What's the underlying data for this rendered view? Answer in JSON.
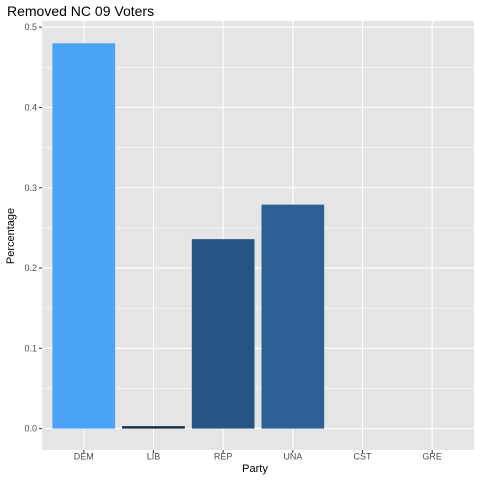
{
  "chart_data": {
    "type": "bar",
    "title": "Removed NC 09 Voters",
    "xlabel": "Party",
    "ylabel": "Percentage",
    "categories": [
      "DEM",
      "LIB",
      "REP",
      "UNA",
      "CST",
      "GRE"
    ],
    "values": [
      0.48,
      0.003,
      0.236,
      0.279,
      0.0,
      0.0
    ],
    "colors": [
      "#4aa3f7",
      "#132b43",
      "#275583",
      "#2d6095",
      "#56b1f7",
      "#56b1f7"
    ],
    "ylim": [
      0,
      0.5
    ],
    "yticks": [
      0.0,
      0.1,
      0.2,
      0.3,
      0.4,
      0.5
    ],
    "ytick_labels": [
      "0.0",
      "0.1",
      "0.2",
      "0.3",
      "0.4",
      "0.5"
    ],
    "grid": true,
    "panel_background": "#e5e5e5",
    "grid_color": "#ffffff"
  }
}
